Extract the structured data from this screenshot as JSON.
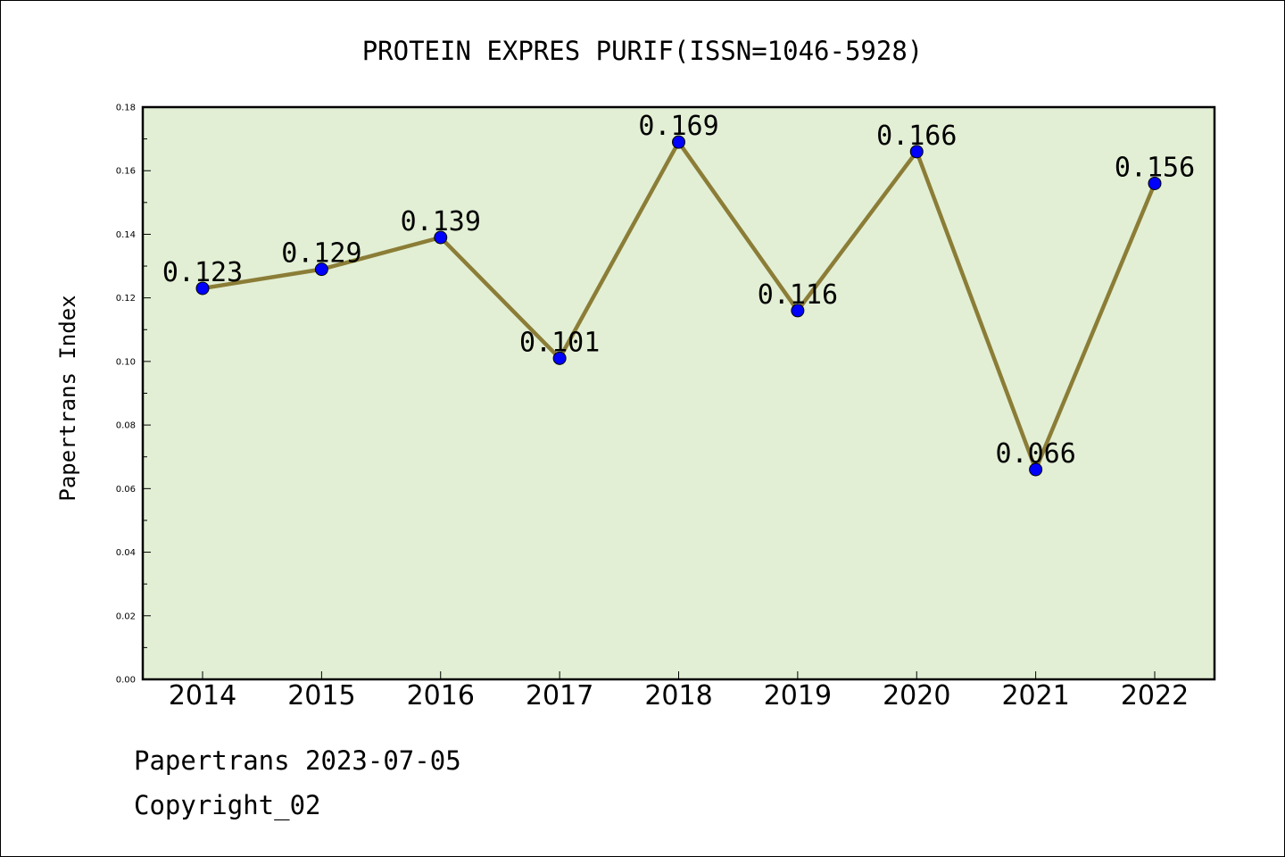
{
  "chart_data": {
    "type": "line",
    "title": "PROTEIN EXPRES PURIF(ISSN=1046-5928)",
    "xlabel": "",
    "ylabel": "Papertrans Index",
    "categories": [
      "2014",
      "2015",
      "2016",
      "2017",
      "2018",
      "2019",
      "2020",
      "2021",
      "2022"
    ],
    "values": [
      0.123,
      0.129,
      0.139,
      0.101,
      0.169,
      0.116,
      0.166,
      0.066,
      0.156
    ],
    "data_labels": [
      "0.123",
      "0.129",
      "0.139",
      "0.101",
      "0.169",
      "0.116",
      "0.166",
      "0.066",
      "0.156"
    ],
    "ylim": [
      0,
      0.18
    ],
    "yticks": [
      "0.00",
      "0.02",
      "0.04",
      "0.06",
      "0.08",
      "0.10",
      "0.12",
      "0.14",
      "0.16",
      "0.18"
    ],
    "grid": false,
    "legend": "none",
    "colors": {
      "plot_background": "#e2efd4",
      "line": "#8b7d37",
      "marker": "#0000ff"
    }
  },
  "footer": {
    "line1": "Papertrans 2023-07-05",
    "line2": "Copyright_02"
  }
}
